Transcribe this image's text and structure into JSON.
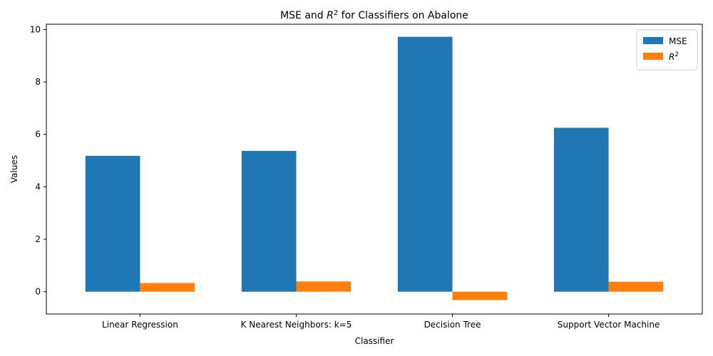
{
  "chart_data": {
    "type": "bar",
    "title": "MSE and R² for Classifiers on Abalone",
    "title_parts": {
      "prefix": "MSE and ",
      "symbol": "R",
      "sup": "2",
      "suffix": " for Classifiers on Abalone"
    },
    "xlabel": "Classifier",
    "ylabel": "Values",
    "categories": [
      "Linear Regression",
      "K Nearest Neighbors: k=5",
      "Decision Tree",
      "Support Vector Machine"
    ],
    "series": [
      {
        "name": "MSE",
        "color": "#1f77b4",
        "values": [
          5.18,
          5.37,
          9.72,
          6.25
        ]
      },
      {
        "name": "R²",
        "legend_symbol": "R",
        "legend_sup": "2",
        "color": "#ff7f0e",
        "values": [
          0.33,
          0.39,
          -0.32,
          0.38
        ]
      }
    ],
    "ylim": [
      -0.85,
      10.2
    ],
    "yticks": [
      0,
      2,
      4,
      6,
      8,
      10
    ],
    "grid": false,
    "legend": "top-right"
  }
}
